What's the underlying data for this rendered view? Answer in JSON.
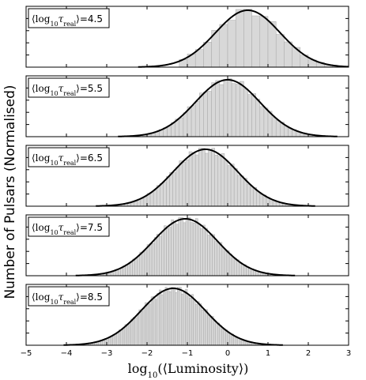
{
  "chart_data": {
    "type": "bar",
    "ylabel": "Number of Pulsars (Normalised)",
    "xlabel": "log10(⟨Luminosity⟩)",
    "xlim": [
      -5,
      3
    ],
    "x_ticks": [
      -5,
      -4,
      -3,
      -2,
      -1,
      0,
      1,
      2,
      3
    ],
    "panels": [
      {
        "legend": "⟨log10τreal⟩=4.5",
        "legend_value": "4.5",
        "mean": 0.5,
        "sigma": 0.8,
        "bin_width": 0.2,
        "hist_range": [
          -1.2,
          2.8
        ]
      },
      {
        "legend": "⟨log10τreal⟩=5.5",
        "legend_value": "5.5",
        "mean": 0.0,
        "sigma": 0.8,
        "bin_width": 0.1,
        "hist_range": [
          -2.3,
          2.4
        ]
      },
      {
        "legend": "⟨log10τreal⟩=6.5",
        "legend_value": "6.5",
        "mean": -0.55,
        "sigma": 0.8,
        "bin_width": 0.08,
        "hist_range": [
          -3.2,
          2.3
        ]
      },
      {
        "legend": "⟨log10τreal⟩=7.5",
        "legend_value": "7.5",
        "mean": -1.05,
        "sigma": 0.8,
        "bin_width": 0.06,
        "hist_range": [
          -3.8,
          2.2
        ]
      },
      {
        "legend": "⟨log10τreal⟩=8.5",
        "legend_value": "8.5",
        "mean": -1.35,
        "sigma": 0.8,
        "bin_width": 0.05,
        "hist_range": [
          -3.5,
          1.0
        ]
      }
    ]
  }
}
